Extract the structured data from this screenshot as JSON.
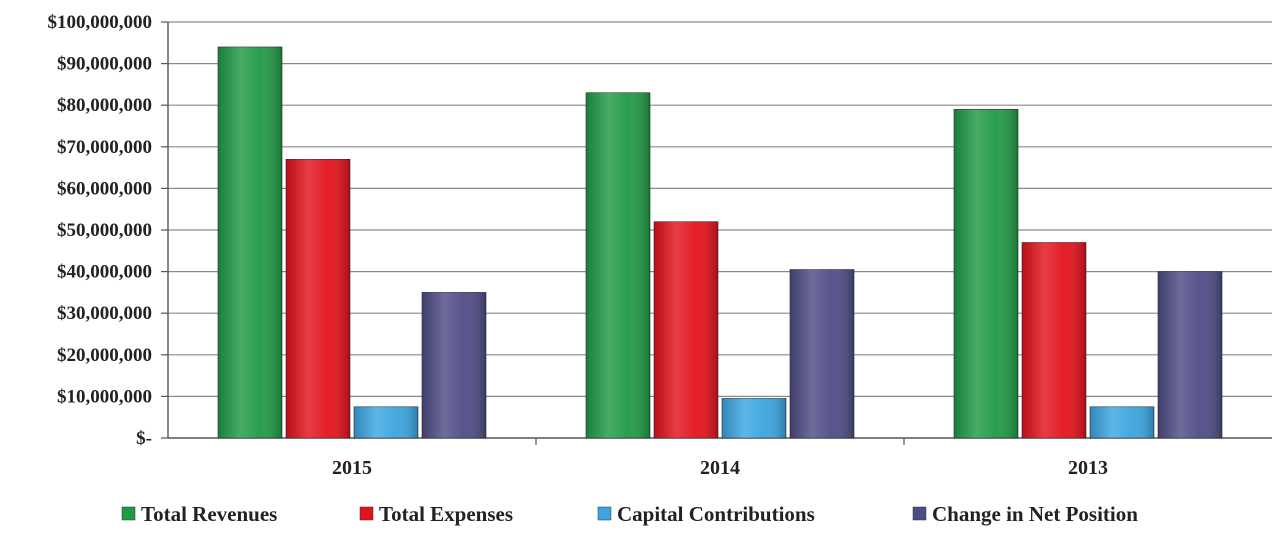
{
  "chart_data": {
    "type": "bar",
    "title": "",
    "xlabel": "",
    "ylabel": "",
    "categories": [
      "2015",
      "2014",
      "2013"
    ],
    "ylim": [
      0,
      100000000
    ],
    "yticks": [
      0,
      10000000,
      20000000,
      30000000,
      40000000,
      50000000,
      60000000,
      70000000,
      80000000,
      90000000,
      100000000
    ],
    "ytick_labels": [
      "$-",
      "$10,000,000",
      "$20,000,000",
      "$30,000,000",
      "$40,000,000",
      "$50,000,000",
      "$60,000,000",
      "$70,000,000",
      "$80,000,000",
      "$90,000,000",
      "$100,000,000"
    ],
    "grid": true,
    "legend_position": "bottom",
    "series": [
      {
        "name": "Total Revenues",
        "color": "#1f9a45",
        "values": [
          94000000,
          83000000,
          79000000
        ]
      },
      {
        "name": "Total Expenses",
        "color": "#e3121b",
        "values": [
          67000000,
          52000000,
          47000000
        ]
      },
      {
        "name": "Capital Contributions",
        "color": "#3aa6e0",
        "values": [
          7500000,
          9500000,
          7500000
        ]
      },
      {
        "name": "Change in Net Position",
        "color": "#4e4c86",
        "values": [
          35000000,
          40500000,
          40000000
        ]
      }
    ]
  }
}
